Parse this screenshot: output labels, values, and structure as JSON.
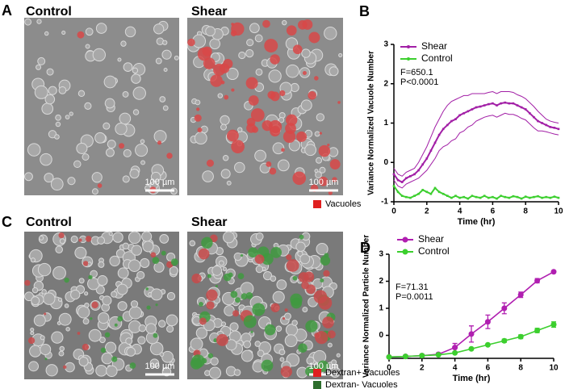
{
  "panels": [
    {
      "label": "A",
      "images": [
        {
          "title": "Control",
          "scale": "100 µm"
        },
        {
          "title": "Shear",
          "scale": "100 µm"
        }
      ],
      "legend": [
        "Vacuoles"
      ]
    },
    {
      "label": "C",
      "images": [
        {
          "title": "Control",
          "scale": "100 µm"
        },
        {
          "title": "Shear",
          "scale": "100 µm"
        }
      ],
      "legend": [
        "Dextran+ Vacuoles",
        "Dextran- Vacuoles"
      ]
    }
  ],
  "chart_data": [
    {
      "type": "line",
      "panel_label": "B",
      "y_label": "Variance Normalized Vacuole Number",
      "x_label": "Time (hr)",
      "annotations": [
        "F=650.1",
        "P<0.0001"
      ],
      "xlim": [
        0,
        10
      ],
      "ylim": [
        -1,
        3
      ],
      "xticks": [
        0,
        2,
        4,
        6,
        8,
        10
      ],
      "yticks": [
        -1,
        0,
        1,
        2,
        3
      ],
      "x": [
        0,
        0.25,
        0.5,
        0.75,
        1,
        1.25,
        1.5,
        1.75,
        2,
        2.25,
        2.5,
        2.75,
        3,
        3.25,
        3.5,
        3.75,
        4,
        4.25,
        4.5,
        4.75,
        5,
        5.25,
        5.5,
        5.75,
        6,
        6.25,
        6.5,
        6.75,
        7,
        7.25,
        7.5,
        7.75,
        8,
        8.25,
        8.5,
        8.75,
        9,
        9.25,
        9.5,
        9.75,
        10
      ],
      "series": [
        {
          "name": "Shear",
          "color": "#a21fa6",
          "values": [
            -0.3,
            -0.45,
            -0.5,
            -0.4,
            -0.35,
            -0.3,
            -0.2,
            -0.05,
            0.1,
            0.3,
            0.5,
            0.7,
            0.85,
            0.95,
            1.05,
            1.1,
            1.2,
            1.25,
            1.3,
            1.35,
            1.4,
            1.42,
            1.45,
            1.48,
            1.5,
            1.45,
            1.5,
            1.52,
            1.5,
            1.5,
            1.45,
            1.4,
            1.35,
            1.25,
            1.15,
            1.05,
            1.0,
            0.95,
            0.9,
            0.88,
            0.85
          ],
          "upper": [
            -0.15,
            -0.3,
            -0.35,
            -0.25,
            -0.2,
            -0.15,
            0.0,
            0.2,
            0.4,
            0.65,
            0.9,
            1.1,
            1.3,
            1.45,
            1.55,
            1.6,
            1.65,
            1.7,
            1.7,
            1.75,
            1.75,
            1.75,
            1.75,
            1.78,
            1.8,
            1.75,
            1.8,
            1.8,
            1.8,
            1.78,
            1.72,
            1.68,
            1.62,
            1.52,
            1.42,
            1.3,
            1.2,
            1.1,
            1.05,
            1.02,
            1.0
          ],
          "lower": [
            -0.45,
            -0.6,
            -0.65,
            -0.55,
            -0.5,
            -0.45,
            -0.4,
            -0.3,
            -0.2,
            -0.05,
            0.1,
            0.3,
            0.4,
            0.45,
            0.55,
            0.6,
            0.75,
            0.8,
            0.9,
            0.95,
            1.05,
            1.1,
            1.15,
            1.18,
            1.2,
            1.15,
            1.2,
            1.25,
            1.22,
            1.22,
            1.18,
            1.12,
            1.08,
            0.98,
            0.88,
            0.8,
            0.8,
            0.78,
            0.75,
            0.72,
            0.7
          ]
        },
        {
          "name": "Control",
          "color": "#3ccf2e",
          "values": [
            -0.6,
            -0.75,
            -0.85,
            -0.88,
            -0.9,
            -0.85,
            -0.8,
            -0.7,
            -0.75,
            -0.8,
            -0.65,
            -0.75,
            -0.8,
            -0.85,
            -0.9,
            -0.85,
            -0.9,
            -0.88,
            -0.92,
            -0.85,
            -0.88,
            -0.9,
            -0.85,
            -0.9,
            -0.88,
            -0.92,
            -0.85,
            -0.88,
            -0.9,
            -0.86,
            -0.88,
            -0.92,
            -0.87,
            -0.9,
            -0.88,
            -0.86,
            -0.9,
            -0.88,
            -0.9,
            -0.87,
            -0.9
          ]
        }
      ]
    },
    {
      "type": "errorline",
      "panel_label": "D",
      "y_label": "Variance Normalized Particle Number",
      "x_label": "Time (hr)",
      "annotations": [
        "F=71.31",
        "P=0.0011"
      ],
      "xlim": [
        0,
        10
      ],
      "ylim": [
        -0.85,
        3
      ],
      "xticks": [
        0,
        2,
        4,
        6,
        8,
        10
      ],
      "yticks": [
        0,
        1,
        2,
        3
      ],
      "x": [
        0,
        1,
        2,
        3,
        4,
        5,
        6,
        7,
        8,
        9,
        10
      ],
      "series": [
        {
          "name": "Shear",
          "color": "#b01fb0",
          "values": [
            -0.8,
            -0.78,
            -0.75,
            -0.7,
            -0.45,
            0.05,
            0.5,
            1.0,
            1.5,
            2.02,
            2.35
          ],
          "errors": [
            0,
            0,
            0,
            0.05,
            0.15,
            0.3,
            0.25,
            0.2,
            0.1,
            0.08,
            0
          ]
        },
        {
          "name": "Control",
          "color": "#3ccf2e",
          "values": [
            -0.8,
            -0.78,
            -0.75,
            -0.72,
            -0.65,
            -0.5,
            -0.35,
            -0.2,
            -0.05,
            0.18,
            0.4
          ],
          "errors": [
            0,
            0,
            0,
            0,
            0,
            0,
            0,
            0.06,
            0.07,
            0.08,
            0.1
          ]
        }
      ]
    }
  ]
}
